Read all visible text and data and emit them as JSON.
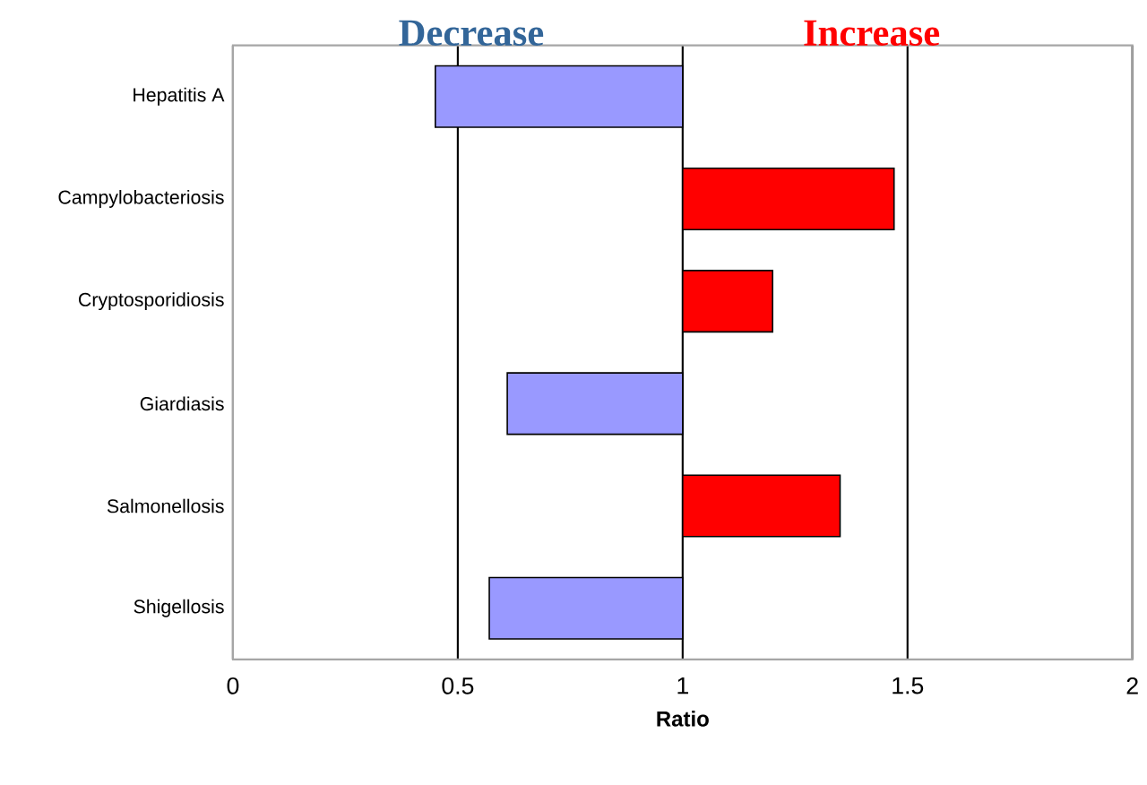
{
  "chart_data": {
    "type": "bar",
    "orientation": "horizontal",
    "xlabel": "Ratio",
    "categories": [
      "Hepatitis A",
      "Campylobacteriosis",
      "Cryptosporidiosis",
      "Giardiasis",
      "Salmonellosis",
      "Shigellosis"
    ],
    "values": [
      -0.55,
      0.47,
      0.2,
      -0.39,
      0.35,
      -0.43
    ],
    "base": [
      1,
      1,
      1,
      1,
      1,
      1
    ],
    "colors": [
      "#9999ff",
      "#ff0000",
      "#ff0000",
      "#9999ff",
      "#ff0000",
      "#9999ff"
    ],
    "xlim": [
      0,
      2
    ],
    "xticks": [
      0,
      0.5,
      1,
      1.5,
      2
    ],
    "grid": "x",
    "annotations": [
      "Decrease",
      "Increase"
    ]
  }
}
